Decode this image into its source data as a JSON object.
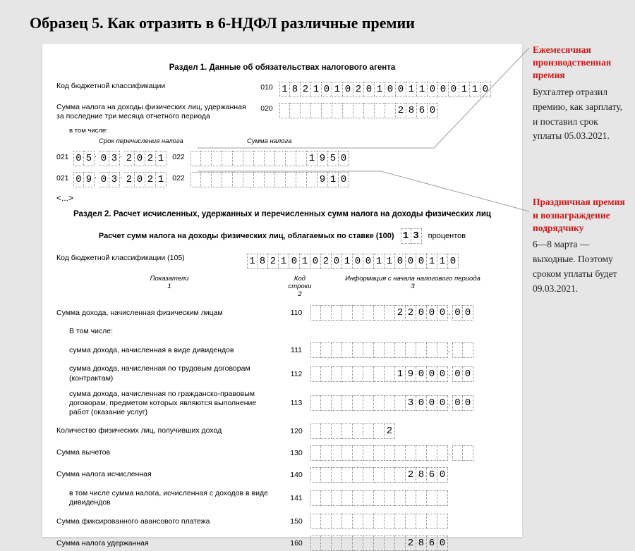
{
  "title": "Образец 5. Как отразить в 6-НДФЛ различные премии",
  "section1": {
    "heading": "Раздел 1. Данные об обязательствах налогового агента",
    "kbk_label": "Код бюджетной классификации",
    "kbk_code": "010",
    "kbk_value": "18210102010011000110",
    "tax_sum_label": "Сумма налога на доходы физических лиц, удержанная за последние три месяца отчетного периода",
    "tax_sum_code": "020",
    "tax_sum_value": "2860",
    "including_label": "в том числе:",
    "col_srok": "Срок перечисления налога",
    "col_summa": "Сумма налога",
    "rows": [
      {
        "left_code": "021",
        "date": "05.03.2021",
        "right_code": "022",
        "amount": "1950"
      },
      {
        "left_code": "021",
        "date": "09.03.2021",
        "right_code": "022",
        "amount": "910"
      }
    ],
    "ellipsis": "<...>"
  },
  "section2": {
    "heading": "Раздел 2. Расчет исчисленных, удержанных и перечисленных сумм налога на доходы физических лиц",
    "rate_label_before": "Расчет сумм налога на доходы физических лиц, облагаемых по ставке (100)",
    "rate_value": "13",
    "rate_label_after": "процентов",
    "kbk_label": "Код бюджетной классификации  (105)",
    "kbk_value": "18210102010011000110",
    "col_indicator": "Показатели",
    "col_indicator_num": "1",
    "col_linecode": "Код строки",
    "col_linecode_num": "2",
    "col_info": "Информация с начала налогового периода",
    "col_info_num": "3",
    "lines": [
      {
        "label": "Сумма дохода, начисленная физическим лицам",
        "code": "110",
        "int": "22000",
        "dec": "00",
        "indent": 0
      },
      {
        "label": "В том числе:",
        "code": "",
        "int": "",
        "dec": "",
        "indent": 1,
        "noboxes": true
      },
      {
        "label": "сумма дохода, начисленная в виде дивидендов",
        "code": "111",
        "int": "",
        "dec": "",
        "indent": 1
      },
      {
        "label": "сумма дохода, начисленная по трудовым договорам (контрактам)",
        "code": "112",
        "int": "19000",
        "dec": "00",
        "indent": 1
      },
      {
        "label": "сумма дохода, начисленная по гражданско-правовым договорам, предметом которых являются выполнение работ (оказание услуг)",
        "code": "113",
        "int": "3000",
        "dec": "00",
        "indent": 1
      },
      {
        "label": "Количество физических лиц, получивших доход",
        "code": "120",
        "int": "2",
        "dec": null,
        "intlen": 8,
        "indent": 0
      },
      {
        "label": "Сумма вычетов",
        "code": "130",
        "int": "",
        "dec": "",
        "indent": 0
      },
      {
        "label": "Сумма налога исчисленная",
        "code": "140",
        "int": "2860",
        "dec": null,
        "indent": 0
      },
      {
        "label": "в том числе сумма налога, исчисленная с доходов в виде дивидендов",
        "code": "141",
        "int": "",
        "dec": null,
        "indent": 1
      },
      {
        "label": "Сумма фиксированного авансового платежа",
        "code": "150",
        "int": "",
        "dec": null,
        "indent": 0
      },
      {
        "label": "Сумма налога удержанная",
        "code": "160",
        "int": "2860",
        "dec": null,
        "indent": 0
      }
    ]
  },
  "notes": [
    {
      "title": "Ежемесячная производ­ственная премия",
      "body": "Бухгалтер отразил премию, как зар­плату, и поставил срок уплаты 05.03.2021."
    },
    {
      "title": "Праздничная премия и воз­награждение подрядчику",
      "body": "6—8 марта — выходные. Поэтому сроком уплаты будет 09.03.2021."
    }
  ],
  "style": {
    "bg": "#e6e6e6",
    "paper_bg": "#ffffff",
    "accent": "#d01818",
    "cell_border": "#888888",
    "leader_color": "#9aa0a6"
  }
}
